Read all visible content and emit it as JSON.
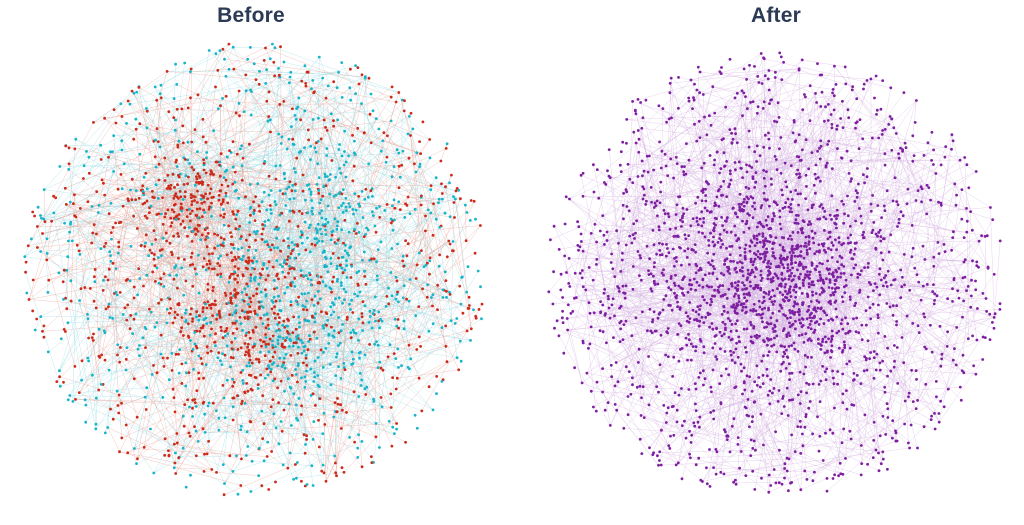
{
  "panels": {
    "before": {
      "title": "Before",
      "colors": {
        "red": "#cc2a1a",
        "cyan": "#17b5c9",
        "edge_red": "#e89a90",
        "edge_cyan": "#8fd8e2"
      },
      "legend": "none"
    },
    "after": {
      "title": "After",
      "colors": {
        "purple": "#7d1fa0",
        "edge": "#d3aee0"
      },
      "legend": "none"
    }
  }
}
